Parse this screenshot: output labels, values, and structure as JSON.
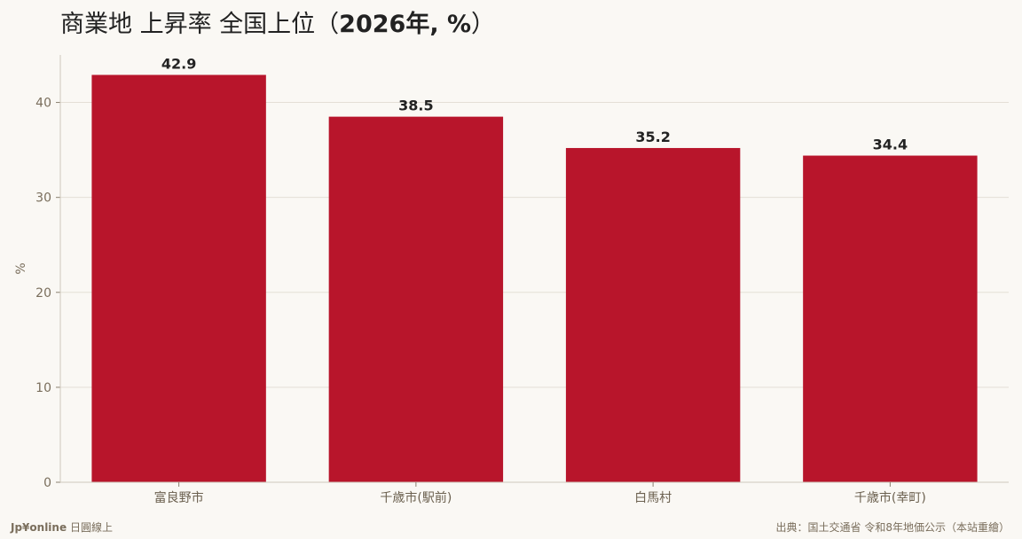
{
  "title": {
    "main": "商業地 上昇率 全国上位",
    "paren_open": "（",
    "year_unit": "2026年, %",
    "paren_close": "）"
  },
  "chart_data": {
    "type": "bar",
    "categories": [
      "富良野市",
      "千歳市(駅前)",
      "白馬村",
      "千歳市(幸町)"
    ],
    "values": [
      42.9,
      38.5,
      35.2,
      34.4
    ],
    "value_labels": [
      "42.9",
      "38.5",
      "35.2",
      "34.4"
    ],
    "ylabel": "%",
    "ylim": [
      0,
      45
    ],
    "yticks": [
      0,
      10,
      20,
      30,
      40
    ],
    "grid": true,
    "bar_color": "#b8152b"
  },
  "footer": {
    "brand": "Jp¥online",
    "brand_suffix": "日圓線上",
    "source": "出典：国土交通省 令和8年地価公示（本站重繪）"
  }
}
